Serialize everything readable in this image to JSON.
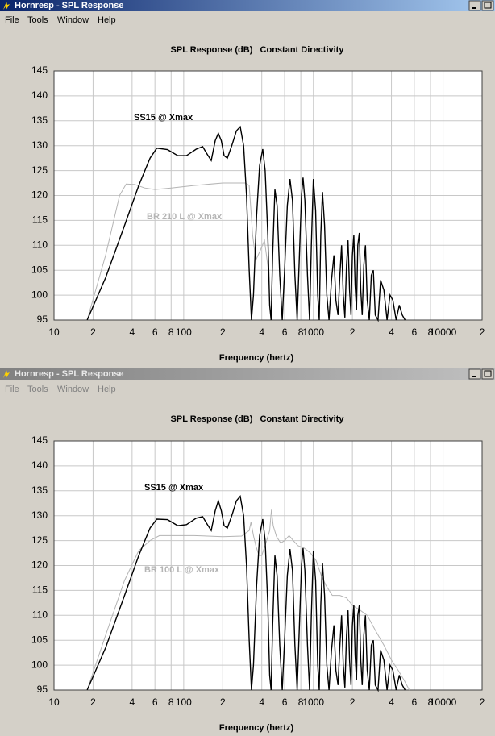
{
  "windows": [
    {
      "title": "Hornresp - SPL Response",
      "menu": [
        "File",
        "Tools",
        "Window",
        "Help"
      ]
    },
    {
      "title": "Hornresp - SPL Response",
      "menu": [
        "File",
        "Tools",
        "Window",
        "Help"
      ]
    }
  ],
  "chart_data": [
    {
      "type": "line",
      "title": "SPL Response (dB)   Constant Directivity",
      "x_label": "Frequency (hertz)",
      "x_scale": "log",
      "xlim": [
        10,
        20000
      ],
      "xticks": [
        10,
        {
          "value": 20,
          "label": "2"
        },
        {
          "value": 40,
          "label": "4"
        },
        {
          "value": 60,
          "label": "6"
        },
        {
          "value": 80,
          "label": "8"
        },
        100,
        {
          "value": 200,
          "label": "2"
        },
        {
          "value": 400,
          "label": "4"
        },
        {
          "value": 600,
          "label": "6"
        },
        {
          "value": 800,
          "label": "8"
        },
        1000,
        {
          "value": 2000,
          "label": "2"
        },
        {
          "value": 4000,
          "label": "4"
        },
        {
          "value": 6000,
          "label": "6"
        },
        {
          "value": 8000,
          "label": "8"
        },
        10000,
        {
          "value": 20000,
          "label": "2"
        }
      ],
      "ylim": [
        95,
        145
      ],
      "yticks": [
        95,
        100,
        105,
        110,
        115,
        120,
        125,
        130,
        135,
        140,
        145
      ],
      "grid": true,
      "series": [
        {
          "name": "BR 210 L @ Xmax",
          "color": "#b4b4b4",
          "x": [
            18,
            25,
            32,
            36,
            42,
            50,
            60,
            80,
            120,
            200,
            300,
            320,
            340,
            360,
            390,
            420,
            450
          ],
          "values": [
            95,
            108,
            120,
            122.3,
            122.2,
            121.5,
            121.2,
            121.5,
            122,
            122.5,
            122.5,
            122,
            112,
            107,
            109,
            111,
            105
          ]
        },
        {
          "name": "SS15 @ Xmax",
          "color": "#000000",
          "x": [
            18,
            25,
            35,
            45,
            55,
            62,
            75,
            90,
            105,
            125,
            140,
            150,
            163,
            175,
            185,
            195,
            205,
            217,
            235,
            255,
            273,
            290,
            305,
            320,
            333,
            345,
            365,
            385,
            407,
            425,
            445,
            460,
            472,
            485,
            505,
            525,
            550,
            575,
            600,
            630,
            660,
            690,
            720,
            750,
            780,
            810,
            832,
            860,
            900,
            935,
            965,
            1000,
            1040,
            1080,
            1110,
            1140,
            1175,
            1220,
            1270,
            1320,
            1380,
            1440,
            1490,
            1550,
            1600,
            1650,
            1700,
            1750,
            1800,
            1850,
            1900,
            1950,
            2000,
            2050,
            2100,
            2150,
            2200,
            2260,
            2320,
            2380,
            2450,
            2520,
            2600,
            2700,
            2800,
            2900,
            3000,
            3150,
            3300,
            3500,
            3700,
            3900,
            4100,
            4350,
            4600,
            4850,
            5100
          ],
          "values": [
            95,
            103.5,
            114,
            122,
            127.5,
            129.5,
            129.2,
            128,
            128,
            129.3,
            129.8,
            128.5,
            127,
            131,
            132.5,
            131,
            128,
            127.5,
            130,
            133,
            133.8,
            130,
            120,
            105,
            95,
            100,
            116,
            126,
            129.3,
            125,
            112,
            98,
            95,
            108,
            121.2,
            118,
            104,
            95,
            105,
            118,
            123.3,
            119,
            104,
            95,
            108,
            120,
            123.6,
            119,
            104,
            95,
            110,
            123.3,
            117,
            100,
            95,
            112,
            120.7,
            114,
            100,
            95,
            103,
            108,
            99,
            96,
            104,
            110,
            100,
            95.5,
            106,
            111,
            101,
            96,
            108,
            112,
            102,
            97,
            110,
            112.5,
            101,
            96,
            106,
            110,
            99,
            95,
            104,
            105,
            96,
            95,
            103,
            101,
            95,
            100,
            99,
            95,
            98,
            96,
            95
          ]
        }
      ]
    },
    {
      "type": "line",
      "title": "SPL Response (dB)   Constant Directivity",
      "x_label": "Frequency (hertz)",
      "x_scale": "log",
      "xlim": [
        10,
        20000
      ],
      "xticks": [
        10,
        {
          "value": 20,
          "label": "2"
        },
        {
          "value": 40,
          "label": "4"
        },
        {
          "value": 60,
          "label": "6"
        },
        {
          "value": 80,
          "label": "8"
        },
        100,
        {
          "value": 200,
          "label": "2"
        },
        {
          "value": 400,
          "label": "4"
        },
        {
          "value": 600,
          "label": "6"
        },
        {
          "value": 800,
          "label": "8"
        },
        1000,
        {
          "value": 2000,
          "label": "2"
        },
        {
          "value": 4000,
          "label": "4"
        },
        {
          "value": 6000,
          "label": "6"
        },
        {
          "value": 8000,
          "label": "8"
        },
        10000,
        {
          "value": 20000,
          "label": "2"
        }
      ],
      "ylim": [
        95,
        145
      ],
      "yticks": [
        95,
        100,
        105,
        110,
        115,
        120,
        125,
        130,
        135,
        140,
        145
      ],
      "grid": true,
      "series": [
        {
          "name": "BR 100 L @ Xmax",
          "color": "#b4b4b4",
          "x": [
            18,
            25,
            35,
            45,
            55,
            65,
            80,
            120,
            200,
            280,
            300,
            320,
            330,
            345,
            360,
            380,
            400,
            430,
            460,
            475,
            490,
            520,
            560,
            600,
            650,
            700,
            760,
            850,
            950,
            1050,
            1150,
            1250,
            1400,
            1600,
            1800,
            2000,
            2300,
            2600,
            3000,
            3500,
            4000,
            4500,
            5000,
            5500
          ],
          "values": [
            95,
            106,
            117,
            123,
            125,
            126,
            126,
            126,
            125.8,
            125.9,
            126.5,
            127,
            128.7,
            126,
            124,
            122,
            122,
            124.5,
            127,
            131.2,
            128,
            125.8,
            124.5,
            125,
            126,
            125,
            124,
            123.5,
            122.5,
            121,
            118,
            116,
            114,
            114,
            113.5,
            112,
            111,
            110,
            107,
            104,
            101,
            99,
            97,
            95
          ]
        },
        {
          "name": "SS15 @ Xmax",
          "color": "#000000",
          "x": [
            18,
            25,
            35,
            45,
            55,
            62,
            75,
            90,
            105,
            125,
            140,
            150,
            163,
            175,
            185,
            195,
            205,
            217,
            235,
            255,
            273,
            290,
            305,
            320,
            333,
            345,
            365,
            385,
            407,
            425,
            445,
            460,
            472,
            485,
            505,
            525,
            550,
            575,
            600,
            630,
            660,
            690,
            720,
            750,
            780,
            810,
            832,
            860,
            900,
            935,
            965,
            1000,
            1040,
            1080,
            1110,
            1140,
            1175,
            1220,
            1270,
            1320,
            1380,
            1440,
            1490,
            1550,
            1600,
            1650,
            1700,
            1750,
            1800,
            1850,
            1900,
            1950,
            2000,
            2050,
            2100,
            2150,
            2200,
            2260,
            2320,
            2380,
            2450,
            2520,
            2600,
            2700,
            2800,
            2900,
            3000,
            3150,
            3300,
            3500,
            3700,
            3900,
            4100,
            4350,
            4600,
            4850,
            5100
          ],
          "values": [
            95,
            103.5,
            114,
            122,
            127.5,
            129.3,
            129.2,
            128,
            128.2,
            129.5,
            129.8,
            128.5,
            127,
            131,
            133,
            131,
            128,
            127.5,
            130,
            133,
            133.9,
            130,
            120,
            105,
            95,
            100,
            116,
            126,
            129.3,
            125,
            112,
            98,
            95,
            108,
            122,
            118,
            104,
            95,
            105,
            118,
            123.3,
            119,
            104,
            95,
            108,
            120,
            123.5,
            119,
            104,
            95,
            110,
            123,
            117,
            100,
            95,
            112,
            120.5,
            114,
            100,
            95,
            103,
            108,
            99,
            96,
            104,
            110,
            100,
            95.5,
            106,
            111,
            101,
            96,
            108,
            112,
            102,
            97,
            110,
            112,
            101,
            96,
            106,
            110,
            99,
            95,
            104,
            105,
            96,
            95,
            103,
            101,
            95,
            100,
            99,
            95,
            98,
            96,
            95
          ]
        }
      ]
    }
  ]
}
